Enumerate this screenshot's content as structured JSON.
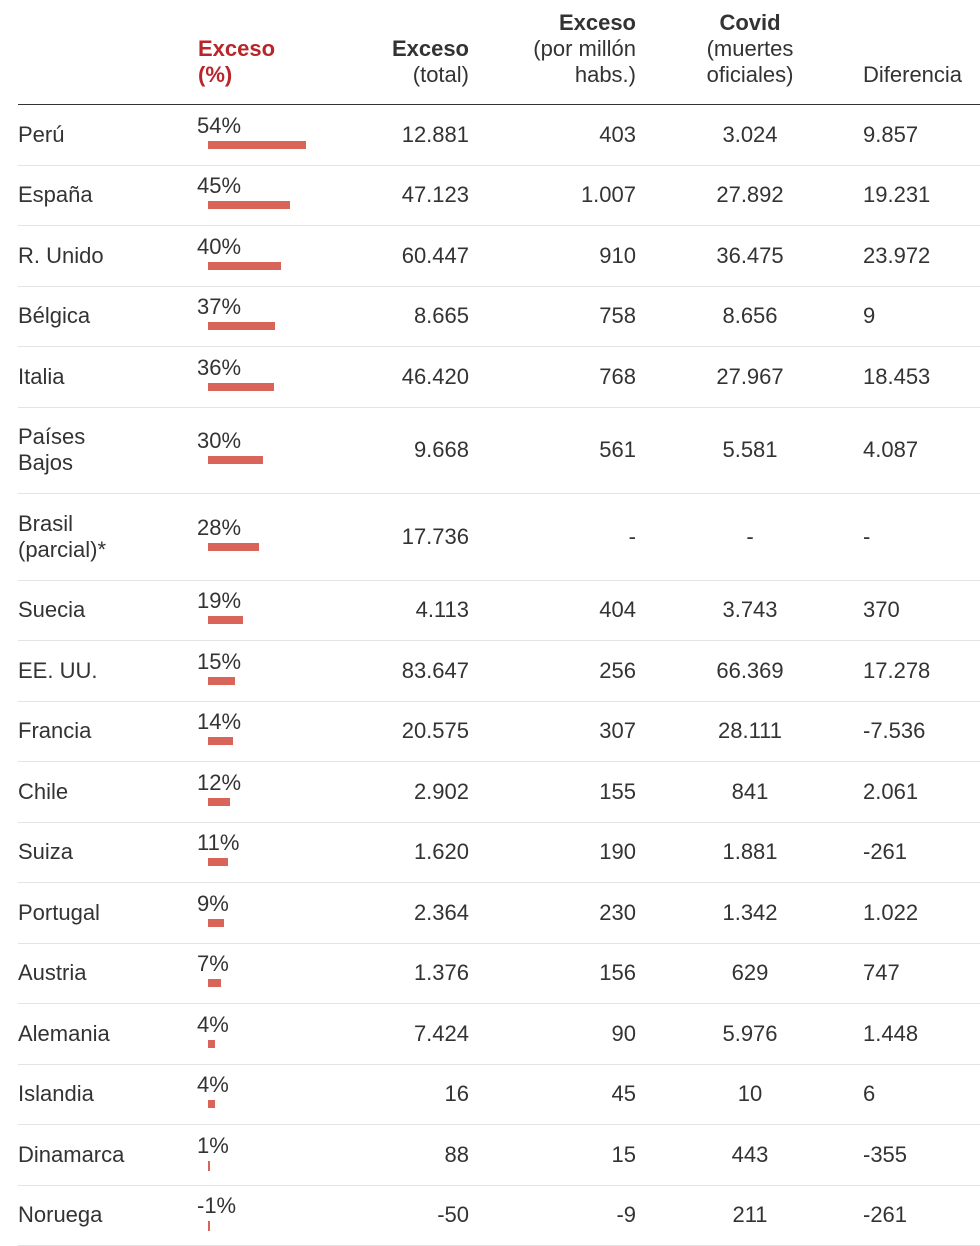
{
  "headers": {
    "pct_line1": "Exceso",
    "pct_line2": "(%)",
    "total_line1": "Exceso",
    "total_line2": "(total)",
    "pm_line1": "Exceso",
    "pm_line2": "(por millón",
    "pm_line3": "habs.)",
    "covid_line1": "Covid",
    "covid_line2": "(muertes",
    "covid_line3": "oficiales)",
    "diff": "Diferencia"
  },
  "colors": {
    "bar": "#d9655a",
    "accent_header": "#b8262c"
  },
  "chart_data": {
    "type": "table",
    "columns": [
      "",
      "Exceso (%)",
      "Exceso (total)",
      "Exceso (por millón habs.)",
      "Covid (muertes oficiales)",
      "Diferencia"
    ],
    "rows": [
      {
        "country": [
          "Perú"
        ],
        "pct_label": "54%",
        "pct": 54,
        "total": "12.881",
        "per_million": "403",
        "covid": "3.024",
        "diff": "9.857"
      },
      {
        "country": [
          "España"
        ],
        "pct_label": "45%",
        "pct": 45,
        "total": "47.123",
        "per_million": "1.007",
        "covid": "27.892",
        "diff": "19.231"
      },
      {
        "country": [
          "R. Unido"
        ],
        "pct_label": "40%",
        "pct": 40,
        "total": "60.447",
        "per_million": "910",
        "covid": "36.475",
        "diff": "23.972"
      },
      {
        "country": [
          "Bélgica"
        ],
        "pct_label": "37%",
        "pct": 37,
        "total": "8.665",
        "per_million": "758",
        "covid": "8.656",
        "diff": "9"
      },
      {
        "country": [
          "Italia"
        ],
        "pct_label": "36%",
        "pct": 36,
        "total": "46.420",
        "per_million": "768",
        "covid": "27.967",
        "diff": "18.453"
      },
      {
        "country": [
          "Países",
          "Bajos"
        ],
        "pct_label": "30%",
        "pct": 30,
        "total": "9.668",
        "per_million": "561",
        "covid": "5.581",
        "diff": "4.087"
      },
      {
        "country": [
          "Brasil",
          "(parcial)*"
        ],
        "pct_label": "28%",
        "pct": 28,
        "total": "17.736",
        "per_million": "-",
        "covid": "-",
        "diff": "-"
      },
      {
        "country": [
          "Suecia"
        ],
        "pct_label": "19%",
        "pct": 19,
        "total": "4.113",
        "per_million": "404",
        "covid": "3.743",
        "diff": "370"
      },
      {
        "country": [
          "EE. UU."
        ],
        "pct_label": "15%",
        "pct": 15,
        "total": "83.647",
        "per_million": "256",
        "covid": "66.369",
        "diff": "17.278"
      },
      {
        "country": [
          "Francia"
        ],
        "pct_label": "14%",
        "pct": 14,
        "total": "20.575",
        "per_million": "307",
        "covid": "28.111",
        "diff": "-7.536"
      },
      {
        "country": [
          "Chile"
        ],
        "pct_label": "12%",
        "pct": 12,
        "total": "2.902",
        "per_million": "155",
        "covid": "841",
        "diff": "2.061"
      },
      {
        "country": [
          "Suiza"
        ],
        "pct_label": "11%",
        "pct": 11,
        "total": "1.620",
        "per_million": "190",
        "covid": "1.881",
        "diff": "-261"
      },
      {
        "country": [
          "Portugal"
        ],
        "pct_label": "9%",
        "pct": 9,
        "total": "2.364",
        "per_million": "230",
        "covid": "1.342",
        "diff": "1.022"
      },
      {
        "country": [
          "Austria"
        ],
        "pct_label": "7%",
        "pct": 7,
        "total": "1.376",
        "per_million": "156",
        "covid": "629",
        "diff": "747"
      },
      {
        "country": [
          "Alemania"
        ],
        "pct_label": "4%",
        "pct": 4,
        "total": "7.424",
        "per_million": "90",
        "covid": "5.976",
        "diff": "1.448"
      },
      {
        "country": [
          "Islandia"
        ],
        "pct_label": "4%",
        "pct": 4,
        "total": "16",
        "per_million": "45",
        "covid": "10",
        "diff": "6"
      },
      {
        "country": [
          "Dinamarca"
        ],
        "pct_label": "1%",
        "pct": 1,
        "total": "88",
        "per_million": "15",
        "covid": "443",
        "diff": "-355"
      },
      {
        "country": [
          "Noruega"
        ],
        "pct_label": "-1%",
        "pct": -1,
        "total": "-50",
        "per_million": "-9",
        "covid": "211",
        "diff": "-261"
      }
    ]
  }
}
